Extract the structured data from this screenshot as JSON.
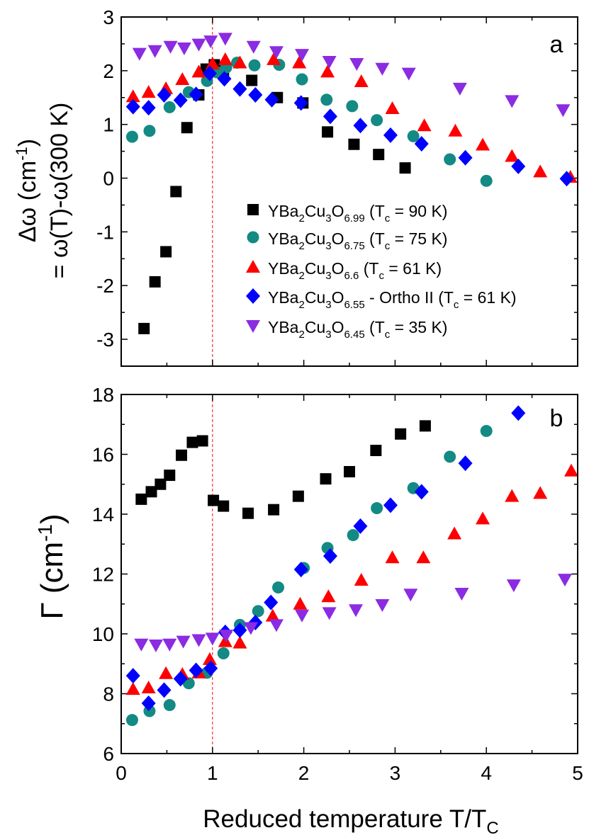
{
  "figure": {
    "xlabel_main": "Reduced temperature T/T",
    "xlabel_sub": "C"
  },
  "chart_data": [
    {
      "type": "scatter",
      "panel_label": "a",
      "ylabel_line1": "Δω (cm",
      "ylabel_line1_sup": "-1",
      "ylabel_line1_end": ")",
      "ylabel_line2": "= ω(T)-ω(300 K)",
      "xlim": [
        0,
        5
      ],
      "ylim": [
        -3.5,
        3
      ],
      "xticks": [
        0,
        1,
        2,
        3,
        4,
        5
      ],
      "yticks": [
        -3,
        -2,
        -1,
        0,
        1,
        2,
        3
      ],
      "grid": false,
      "tc_line_x": 1,
      "legend_position": "center-right",
      "series": [
        {
          "name": "YBa2Cu3O6.99 (Tc = 90 K)",
          "legend": {
            "a": "YBa",
            "b": "2",
            "c": "Cu",
            "d": "3",
            "e": "O",
            "f": "6.99",
            "g": "  (T",
            "h": "c",
            "i": " = 90 K)"
          },
          "color": "#000000",
          "marker": "square",
          "x": [
            0.25,
            0.37,
            0.49,
            0.6,
            0.72,
            0.85,
            0.93,
            1.02,
            1.12,
            1.43,
            1.71,
            1.99,
            2.26,
            2.55,
            2.82,
            3.11
          ],
          "y": [
            -2.8,
            -1.93,
            -1.37,
            -0.25,
            0.94,
            1.55,
            2.03,
            2.11,
            2.0,
            1.82,
            1.5,
            1.4,
            0.86,
            0.63,
            0.44,
            0.19
          ]
        },
        {
          "name": "YBa2Cu3O6.75 (Tc = 75 K)",
          "legend": {
            "a": "YBa",
            "b": "2",
            "c": "Cu",
            "d": "3",
            "e": "O",
            "f": "6.75",
            "g": " (T",
            "h": "c",
            "i": " = 75 K)"
          },
          "color": "#138a83",
          "marker": "circle",
          "x": [
            0.12,
            0.31,
            0.53,
            0.74,
            0.94,
            1.05,
            1.15,
            1.27,
            1.46,
            1.73,
            1.98,
            2.25,
            2.53,
            2.8,
            3.2,
            3.6,
            4.0
          ],
          "y": [
            0.77,
            0.88,
            1.32,
            1.6,
            1.81,
            1.97,
            2.06,
            2.15,
            2.1,
            2.11,
            1.84,
            1.46,
            1.34,
            1.08,
            0.78,
            0.35,
            -0.05
          ]
        },
        {
          "name": "YBa2Cu3O6.6 (Tc = 61 K)",
          "legend": {
            "a": "YBa",
            "b": "2",
            "c": "Cu",
            "d": "3",
            "e": "O",
            "f": "6.6",
            "g": "  (T",
            "h": "c",
            "i": " = 61 K)"
          },
          "color": "#ff0000",
          "marker": "triangle-up",
          "x": [
            0.13,
            0.3,
            0.49,
            0.67,
            0.85,
            1.0,
            1.14,
            1.3,
            1.67,
            1.95,
            2.26,
            2.63,
            2.97,
            3.32,
            3.66,
            3.96,
            4.28,
            4.59,
            4.92
          ],
          "y": [
            1.52,
            1.6,
            1.67,
            1.84,
            1.98,
            2.13,
            2.21,
            2.15,
            2.21,
            2.15,
            1.98,
            1.8,
            1.3,
            0.98,
            0.88,
            0.62,
            0.41,
            0.12,
            0.02
          ]
        },
        {
          "name": "YBa2Cu3O6.55 - Ortho II (Tc = 61 K)",
          "legend": {
            "a": "YBa",
            "b": "2",
            "c": "Cu",
            "d": "3",
            "e": "O",
            "f": "6.55",
            "g": " - Ortho II (T",
            "h": "c",
            "i": " = 61 K)"
          },
          "color": "#0000ff",
          "marker": "diamond",
          "x": [
            0.13,
            0.3,
            0.47,
            0.65,
            0.82,
            0.97,
            1.13,
            1.3,
            1.47,
            1.65,
            1.97,
            2.29,
            2.62,
            2.95,
            3.29,
            3.77,
            4.35,
            4.88
          ],
          "y": [
            1.33,
            1.31,
            1.55,
            1.45,
            1.56,
            1.95,
            1.85,
            1.66,
            1.55,
            1.46,
            1.4,
            1.15,
            0.98,
            0.8,
            0.64,
            0.38,
            0.22,
            -0.01
          ]
        },
        {
          "name": "YBa2Cu3O6.45 (Tc = 35 K)",
          "legend": {
            "a": "YBa",
            "b": "2",
            "c": "Cu",
            "d": "3",
            "e": "O",
            "f": "6.45",
            "g": " (T",
            "h": "c",
            "i": " = 35 K)"
          },
          "color": "#8b2be2",
          "marker": "triangle-down",
          "x": [
            0.2,
            0.37,
            0.54,
            0.69,
            0.85,
            0.98,
            1.14,
            1.45,
            1.7,
            1.98,
            2.28,
            2.58,
            2.86,
            3.15,
            3.71,
            4.28,
            4.84
          ],
          "y": [
            2.32,
            2.37,
            2.45,
            2.42,
            2.49,
            2.55,
            2.6,
            2.45,
            2.35,
            2.3,
            2.17,
            2.13,
            2.04,
            1.95,
            1.67,
            1.44,
            1.27
          ]
        }
      ]
    },
    {
      "type": "scatter",
      "panel_label": "b",
      "ylabel": "Γ (cm",
      "ylabel_sup": "-1",
      "ylabel_end": ")",
      "xlim": [
        0,
        5
      ],
      "ylim": [
        6,
        18
      ],
      "xticks": [
        0,
        1,
        2,
        3,
        4,
        5
      ],
      "yticks": [
        6,
        8,
        10,
        12,
        14,
        16,
        18
      ],
      "grid": false,
      "tc_line_x": 1,
      "series": [
        {
          "name": "YBa2Cu3O6.99 (Tc = 90 K)",
          "color": "#000000",
          "marker": "square",
          "x": [
            0.22,
            0.33,
            0.43,
            0.53,
            0.66,
            0.78,
            0.89,
            1.01,
            1.12,
            1.39,
            1.67,
            1.94,
            2.24,
            2.5,
            2.79,
            3.06,
            3.33
          ],
          "y": [
            14.5,
            14.75,
            15.0,
            15.3,
            15.97,
            16.4,
            16.45,
            14.46,
            14.27,
            14.03,
            14.15,
            14.6,
            15.18,
            15.42,
            16.13,
            16.68,
            16.95
          ]
        },
        {
          "name": "YBa2Cu3O6.75 (Tc = 75 K)",
          "color": "#138a83",
          "marker": "circle",
          "x": [
            0.12,
            0.31,
            0.53,
            0.74,
            0.94,
            1.12,
            1.3,
            1.5,
            1.72,
            2.0,
            2.26,
            2.54,
            2.8,
            3.2,
            3.6,
            4.0
          ],
          "y": [
            7.12,
            7.42,
            7.62,
            8.35,
            8.7,
            9.35,
            10.3,
            10.76,
            11.55,
            12.2,
            12.87,
            13.3,
            14.2,
            14.87,
            15.92,
            16.78
          ]
        },
        {
          "name": "YBa2Cu3O6.6 (Tc = 61 K)",
          "color": "#ff0000",
          "marker": "triangle-up",
          "x": [
            0.13,
            0.3,
            0.49,
            0.67,
            0.85,
            0.97,
            1.14,
            1.3,
            1.66,
            1.96,
            2.27,
            2.63,
            2.97,
            3.31,
            3.65,
            3.96,
            4.28,
            4.59,
            4.93
          ],
          "y": [
            8.15,
            8.2,
            8.68,
            8.65,
            8.7,
            9.15,
            9.75,
            9.7,
            10.6,
            11.0,
            11.25,
            11.8,
            12.55,
            12.55,
            13.35,
            13.85,
            14.6,
            14.7,
            15.45
          ]
        },
        {
          "name": "YBa2Cu3O6.55 - Ortho II (Tc = 61 K)",
          "color": "#0000ff",
          "marker": "diamond",
          "x": [
            0.13,
            0.3,
            0.47,
            0.65,
            0.82,
            0.98,
            1.14,
            1.3,
            1.47,
            1.64,
            1.97,
            2.29,
            2.62,
            2.95,
            3.29,
            3.77,
            4.35
          ],
          "y": [
            8.6,
            7.68,
            8.12,
            8.5,
            8.78,
            8.85,
            10.05,
            10.12,
            10.38,
            11.05,
            12.15,
            12.6,
            13.6,
            14.3,
            14.75,
            15.7,
            17.38
          ]
        },
        {
          "name": "YBa2Cu3O6.45 (Tc = 35 K)",
          "color": "#8b2be2",
          "marker": "triangle-down",
          "x": [
            0.22,
            0.38,
            0.53,
            0.68,
            0.85,
            1.0,
            1.15,
            1.42,
            1.7,
            1.98,
            2.28,
            2.57,
            2.86,
            3.17,
            3.73,
            4.3,
            4.86
          ],
          "y": [
            9.65,
            9.62,
            9.65,
            9.75,
            9.8,
            9.85,
            9.95,
            10.2,
            10.3,
            10.62,
            10.7,
            10.8,
            10.97,
            11.32,
            11.35,
            11.63,
            11.82
          ]
        }
      ]
    }
  ]
}
